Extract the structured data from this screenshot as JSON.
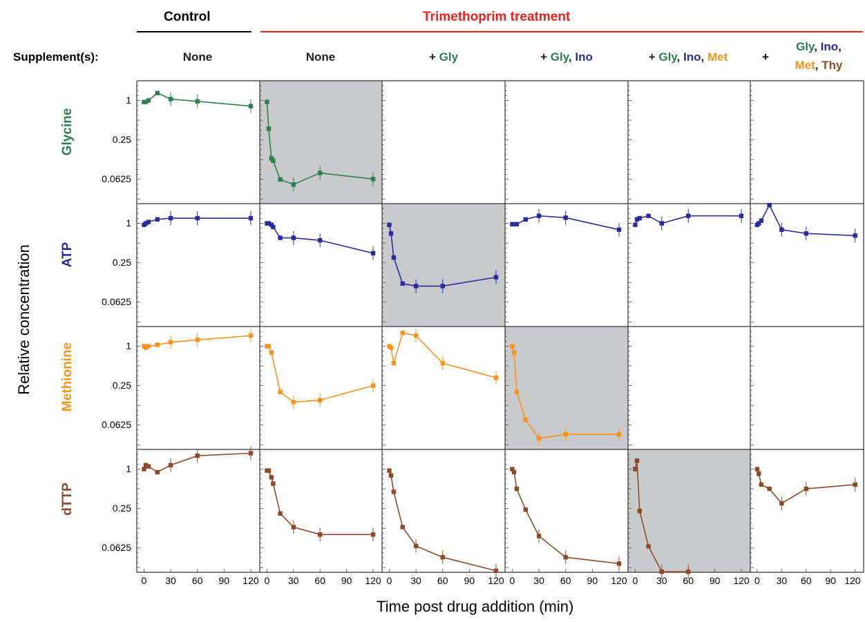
{
  "headers": {
    "control": {
      "label": "Control",
      "color": "#000000"
    },
    "treatment": {
      "label": "Trimethoprim treatment",
      "color": "#e8221c"
    }
  },
  "supplement_label": "Supplement(s):",
  "supplements": [
    [
      {
        "t": "None",
        "c": "#222222"
      }
    ],
    [
      {
        "t": "None",
        "c": "#222222"
      }
    ],
    [
      {
        "t": "+ ",
        "c": "#222222"
      },
      {
        "t": "Gly",
        "c": "#2e7d4f"
      }
    ],
    [
      {
        "t": "+ ",
        "c": "#222222"
      },
      {
        "t": "Gly",
        "c": "#2e7d4f"
      },
      {
        "t": ", ",
        "c": "#222222"
      },
      {
        "t": "Ino",
        "c": "#2b2b9a"
      }
    ],
    [
      {
        "t": "+ ",
        "c": "#222222"
      },
      {
        "t": "Gly",
        "c": "#2e7d4f"
      },
      {
        "t": ", ",
        "c": "#222222"
      },
      {
        "t": "Ino",
        "c": "#2b2b9a"
      },
      {
        "t": ", ",
        "c": "#222222"
      },
      {
        "t": "Met",
        "c": "#f7941d"
      }
    ]
  ],
  "supplement_last": {
    "plus": "+",
    "line1": [
      {
        "t": "Gly",
        "c": "#2e7d4f"
      },
      {
        "t": ", ",
        "c": "#222222"
      },
      {
        "t": "Ino",
        "c": "#2b2b9a"
      },
      {
        "t": ",",
        "c": "#222222"
      }
    ],
    "line2": [
      {
        "t": "Met",
        "c": "#f7941d"
      },
      {
        "t": ", ",
        "c": "#222222"
      },
      {
        "t": "Thy",
        "c": "#8b4a2b"
      }
    ]
  },
  "rows": [
    {
      "label": "Glycine",
      "color": "#2e7d4f"
    },
    {
      "label": "ATP",
      "color": "#2b2b9a"
    },
    {
      "label": "Methionine",
      "color": "#f7941d"
    },
    {
      "label": "dTTP",
      "color": "#8b4a2b"
    }
  ],
  "y_axis_title": "Relative concentration",
  "x_axis_title": "Time post drug addition (min)",
  "y_ticks": [
    "1",
    "0.25",
    "0.0625"
  ],
  "x_ticks": [
    "0",
    "30",
    "60",
    "90",
    "120"
  ],
  "chart_data": {
    "type": "line",
    "layout": "grid 4 rows x 6 columns",
    "xlabel": "Time post drug addition (min)",
    "ylabel": "Relative concentration",
    "yscale": "log2",
    "ylim": [
      0.0265,
      2.0
    ],
    "xlim": [
      -5,
      127
    ],
    "y_ticks": [
      1,
      0.25,
      0.0625
    ],
    "x_ticks": [
      0,
      30,
      60,
      90,
      120
    ],
    "panels": [
      {
        "row": 0,
        "col": 0,
        "highlighted": false,
        "x": [
          0,
          2,
          5,
          15,
          30,
          60,
          120
        ],
        "y": [
          0.95,
          0.95,
          1.0,
          1.3,
          1.05,
          0.97,
          0.82
        ]
      },
      {
        "row": 0,
        "col": 1,
        "highlighted": true,
        "x": [
          0,
          2,
          5,
          7,
          15,
          30,
          60,
          120
        ],
        "y": [
          0.95,
          0.37,
          0.13,
          0.12,
          0.062,
          0.052,
          0.078,
          0.063
        ]
      },
      {
        "row": 0,
        "col": 2,
        "highlighted": false,
        "x": [],
        "y": []
      },
      {
        "row": 0,
        "col": 3,
        "highlighted": false,
        "x": [],
        "y": []
      },
      {
        "row": 0,
        "col": 4,
        "highlighted": false,
        "x": [],
        "y": []
      },
      {
        "row": 0,
        "col": 5,
        "highlighted": false,
        "x": [],
        "y": []
      },
      {
        "row": 1,
        "col": 0,
        "highlighted": false,
        "x": [
          0,
          2,
          5,
          15,
          30,
          60,
          120
        ],
        "y": [
          0.95,
          1.0,
          1.05,
          1.15,
          1.2,
          1.2,
          1.2
        ]
      },
      {
        "row": 1,
        "col": 1,
        "highlighted": false,
        "x": [
          0,
          2,
          5,
          7,
          15,
          30,
          60,
          120
        ],
        "y": [
          1.0,
          1.0,
          0.95,
          0.88,
          0.6,
          0.6,
          0.55,
          0.35
        ]
      },
      {
        "row": 1,
        "col": 2,
        "highlighted": true,
        "x": [
          0,
          2,
          5,
          15,
          30,
          60,
          120
        ],
        "y": [
          0.95,
          0.7,
          0.3,
          0.12,
          0.11,
          0.11,
          0.15
        ]
      },
      {
        "row": 1,
        "col": 3,
        "highlighted": false,
        "x": [
          0,
          2,
          5,
          15,
          30,
          60,
          120
        ],
        "y": [
          0.97,
          0.97,
          0.97,
          1.15,
          1.3,
          1.22,
          0.8
        ]
      },
      {
        "row": 1,
        "col": 4,
        "highlighted": false,
        "x": [
          0,
          2,
          5,
          15,
          30,
          60,
          120
        ],
        "y": [
          0.95,
          1.15,
          1.2,
          1.3,
          1.0,
          1.3,
          1.3
        ]
      },
      {
        "row": 1,
        "col": 5,
        "highlighted": false,
        "x": [
          0,
          2,
          5,
          15,
          30,
          60,
          120
        ],
        "y": [
          0.95,
          1.0,
          1.1,
          1.9,
          0.8,
          0.7,
          0.65
        ]
      },
      {
        "row": 2,
        "col": 0,
        "highlighted": false,
        "x": [
          0,
          2,
          5,
          15,
          30,
          60,
          120
        ],
        "y": [
          1.0,
          0.95,
          1.0,
          1.05,
          1.15,
          1.25,
          1.45
        ]
      },
      {
        "row": 2,
        "col": 1,
        "highlighted": false,
        "x": [
          0,
          2,
          5,
          15,
          30,
          60,
          120
        ],
        "y": [
          1.0,
          1.0,
          0.8,
          0.2,
          0.14,
          0.15,
          0.25
        ]
      },
      {
        "row": 2,
        "col": 2,
        "highlighted": false,
        "x": [
          0,
          2,
          5,
          15,
          30,
          60,
          120
        ],
        "y": [
          1.0,
          0.95,
          0.55,
          1.6,
          1.45,
          0.55,
          0.33
        ]
      },
      {
        "row": 2,
        "col": 3,
        "highlighted": true,
        "x": [
          0,
          2,
          5,
          15,
          30,
          60,
          120
        ],
        "y": [
          1.0,
          0.8,
          0.2,
          0.075,
          0.039,
          0.045,
          0.045
        ]
      },
      {
        "row": 2,
        "col": 4,
        "highlighted": false,
        "x": [],
        "y": []
      },
      {
        "row": 2,
        "col": 5,
        "highlighted": false,
        "x": [],
        "y": []
      },
      {
        "row": 3,
        "col": 0,
        "highlighted": false,
        "x": [
          0,
          2,
          5,
          15,
          30,
          60,
          120
        ],
        "y": [
          1.0,
          1.15,
          1.1,
          0.9,
          1.15,
          1.6,
          1.75
        ]
      },
      {
        "row": 3,
        "col": 1,
        "highlighted": false,
        "x": [
          0,
          2,
          5,
          7,
          15,
          30,
          60,
          120
        ],
        "y": [
          0.95,
          0.95,
          0.75,
          0.6,
          0.21,
          0.13,
          0.1,
          0.1
        ]
      },
      {
        "row": 3,
        "col": 2,
        "highlighted": false,
        "x": [
          0,
          2,
          5,
          15,
          30,
          60,
          120
        ],
        "y": [
          0.95,
          0.8,
          0.45,
          0.13,
          0.067,
          0.045,
          0.028
        ]
      },
      {
        "row": 3,
        "col": 3,
        "highlighted": false,
        "x": [
          0,
          2,
          5,
          15,
          30,
          60,
          120
        ],
        "y": [
          1.0,
          0.9,
          0.5,
          0.24,
          0.095,
          0.045,
          0.036
        ]
      },
      {
        "row": 3,
        "col": 4,
        "highlighted": true,
        "x": [
          0,
          2,
          5,
          15,
          30,
          60
        ],
        "y": [
          1.0,
          1.35,
          0.23,
          0.066,
          0.027,
          0.027
        ]
      },
      {
        "row": 3,
        "col": 5,
        "highlighted": false,
        "x": [
          0,
          2,
          5,
          15,
          30,
          60,
          120
        ],
        "y": [
          1.0,
          0.85,
          0.58,
          0.5,
          0.3,
          0.5,
          0.58
        ]
      }
    ]
  }
}
